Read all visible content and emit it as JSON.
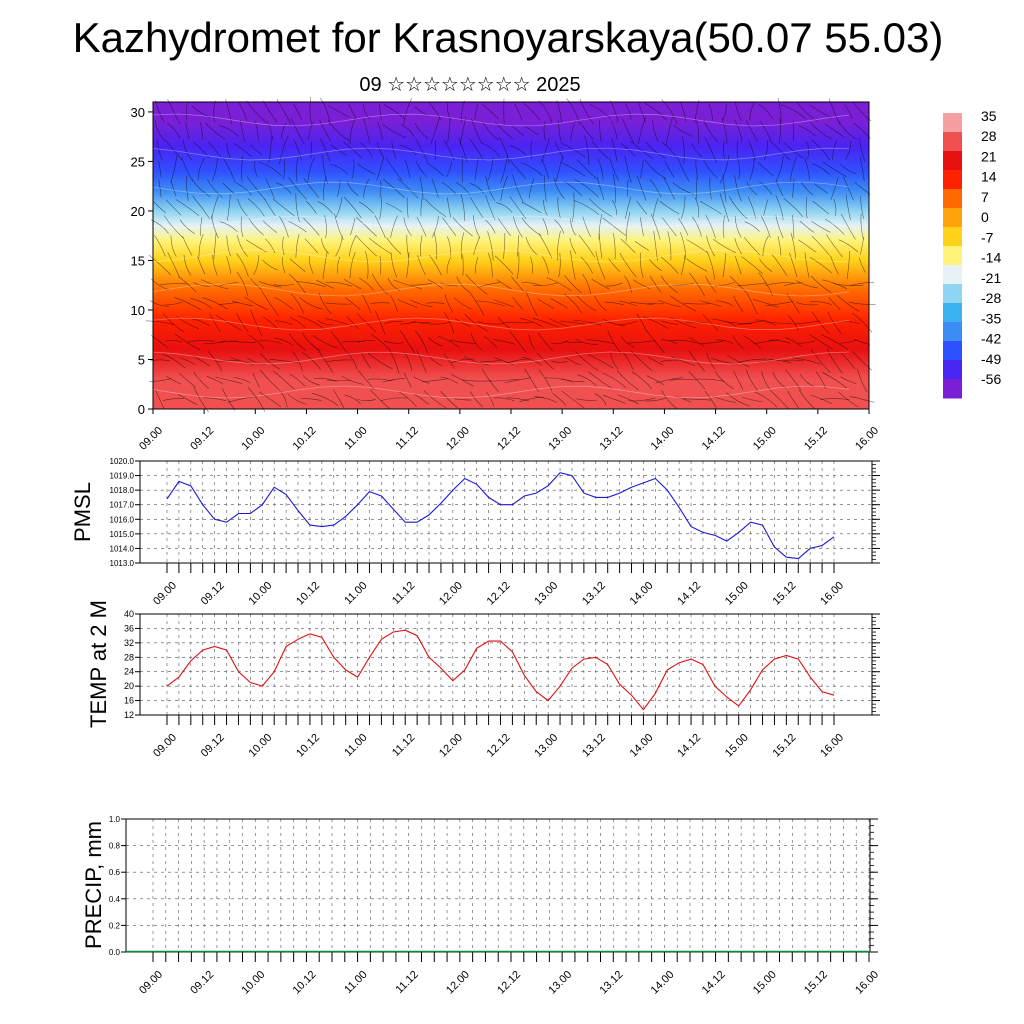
{
  "header": {
    "title": "Kazhydromet for Krasnoyarskaya(50.07 55.03)",
    "subtitle": "09 ☆☆☆☆☆☆☆☆ 2025"
  },
  "colors": {
    "pmsl_line": "#1a1ad6",
    "temp_line": "#e01010",
    "precip_line": "#0a8a3a",
    "palette": [
      "#7a1fd6",
      "#4a24f2",
      "#2f50ff",
      "#3d8cf5",
      "#3cb2f0",
      "#8fd4f2",
      "#e6f2f5",
      "#fff37a",
      "#ffd21a",
      "#ffa30a",
      "#ff6a00",
      "#ff2200",
      "#e81010",
      "#f05050",
      "#f5a0a0"
    ]
  },
  "chart_data": [
    {
      "type": "heatmap",
      "title": "",
      "xlabel": "",
      "ylabel": "",
      "x_ticks": [
        "09.00",
        "09.12",
        "10.00",
        "10.12",
        "11.00",
        "11.12",
        "12.00",
        "12.12",
        "13.00",
        "13.12",
        "14.00",
        "14.12",
        "15.00",
        "15.12",
        "16.00"
      ],
      "y_ticks": [
        "0",
        "5",
        "10",
        "15",
        "20",
        "25",
        "30"
      ],
      "ylim": [
        0,
        31
      ],
      "levels": [
        -56,
        -49,
        -42,
        -35,
        -28,
        -21,
        -14,
        -7,
        0,
        7,
        14,
        21,
        28,
        35
      ],
      "colorbar": {
        "position": "right",
        "labels": [
          "35",
          "28",
          "21",
          "14",
          "7",
          "0",
          "-7",
          "-14",
          "-21",
          "-28",
          "-35",
          "-42",
          "-49",
          "-56"
        ]
      },
      "temperature_profile": [
        {
          "level": 0,
          "value": 30
        },
        {
          "level": 3,
          "value": 26
        },
        {
          "level": 6,
          "value": 20
        },
        {
          "level": 9,
          "value": 14
        },
        {
          "level": 12,
          "value": 6
        },
        {
          "level": 15,
          "value": -2
        },
        {
          "level": 17,
          "value": -10
        },
        {
          "level": 18.5,
          "value": -17
        },
        {
          "level": 20,
          "value": -26
        },
        {
          "level": 22,
          "value": -38
        },
        {
          "level": 24,
          "value": -46
        },
        {
          "level": 26.5,
          "value": -52
        },
        {
          "level": 29,
          "value": -56
        },
        {
          "level": 31,
          "value": -58
        }
      ],
      "grid": false
    },
    {
      "type": "line",
      "ylabel": "PMSL",
      "x_ticks": [
        "09.00",
        "09.12",
        "10.00",
        "10.12",
        "11.00",
        "11.12",
        "12.00",
        "12.12",
        "13.00",
        "13.12",
        "14.00",
        "14.12",
        "15.00",
        "15.12",
        "16.00"
      ],
      "y_ticks": [
        "1013.0",
        "1014.0",
        "1015.0",
        "1016.0",
        "1017.0",
        "1018.0",
        "1019.0",
        "1020.0"
      ],
      "ylim": [
        1013,
        1020
      ],
      "grid": true,
      "series": [
        {
          "values": [
            1017.4,
            1018.6,
            1018.3,
            1017.0,
            1016.0,
            1015.8,
            1016.4,
            1016.4,
            1017.0,
            1018.2,
            1017.7,
            1016.6,
            1015.6,
            1015.5,
            1015.6,
            1016.2,
            1017.0,
            1017.9,
            1017.6,
            1016.7,
            1015.8,
            1015.8,
            1016.3,
            1017.1,
            1018.0,
            1018.8,
            1018.4,
            1017.5,
            1017.0,
            1017.0,
            1017.6,
            1017.8,
            1018.3,
            1019.2,
            1019.0,
            1017.8,
            1017.5,
            1017.5,
            1017.8,
            1018.2,
            1018.5,
            1018.8,
            1018.0,
            1016.8,
            1015.5,
            1015.1,
            1014.9,
            1014.5,
            1015.1,
            1015.8,
            1015.6,
            1014.1,
            1013.4,
            1013.3,
            1014.0,
            1014.2,
            1014.8
          ]
        }
      ]
    },
    {
      "type": "line",
      "ylabel": "TEMP at 2 M",
      "x_ticks": [
        "09.00",
        "09.12",
        "10.00",
        "10.12",
        "11.00",
        "11.12",
        "12.00",
        "12.12",
        "13.00",
        "13.12",
        "14.00",
        "14.12",
        "15.00",
        "15.12",
        "16.00"
      ],
      "y_ticks": [
        "12",
        "16",
        "20",
        "24",
        "28",
        "32",
        "36",
        "40"
      ],
      "ylim": [
        12,
        40
      ],
      "grid": true,
      "series": [
        {
          "values": [
            20,
            22.5,
            27,
            30,
            31,
            30,
            24,
            21,
            20,
            24,
            31,
            33,
            34.5,
            33.5,
            28,
            24.5,
            22.5,
            28,
            33,
            35,
            35.5,
            34,
            28,
            25,
            21.5,
            24.5,
            30.5,
            32.5,
            32.5,
            29.5,
            23,
            18.5,
            16,
            20,
            25,
            27.5,
            28,
            26,
            20.5,
            17.5,
            13.5,
            18,
            24.5,
            26.5,
            27.5,
            26,
            20,
            17,
            14.5,
            19,
            24.5,
            27.5,
            28.5,
            27.5,
            22.5,
            18.5,
            17.5
          ]
        }
      ]
    },
    {
      "type": "bar",
      "ylabel": "PRECIP, mm",
      "x_ticks": [
        "09.00",
        "09.12",
        "10.00",
        "10.12",
        "11.00",
        "11.12",
        "12.00",
        "12.12",
        "13.00",
        "13.12",
        "14.00",
        "14.12",
        "15.00",
        "15.12",
        "16.00"
      ],
      "y_ticks": [
        "0.0",
        "0.2",
        "0.4",
        "0.6",
        "0.8",
        "1.0"
      ],
      "ylim": [
        0,
        1.0
      ],
      "grid": true,
      "series": [
        {
          "values": [
            0,
            0,
            0,
            0,
            0,
            0,
            0,
            0,
            0,
            0,
            0,
            0,
            0,
            0,
            0,
            0,
            0,
            0,
            0,
            0,
            0,
            0,
            0,
            0,
            0,
            0,
            0,
            0,
            0,
            0,
            0,
            0,
            0,
            0,
            0,
            0,
            0,
            0,
            0,
            0,
            0,
            0,
            0,
            0,
            0,
            0,
            0,
            0,
            0,
            0,
            0,
            0,
            0,
            0,
            0,
            0,
            0
          ]
        }
      ]
    }
  ]
}
